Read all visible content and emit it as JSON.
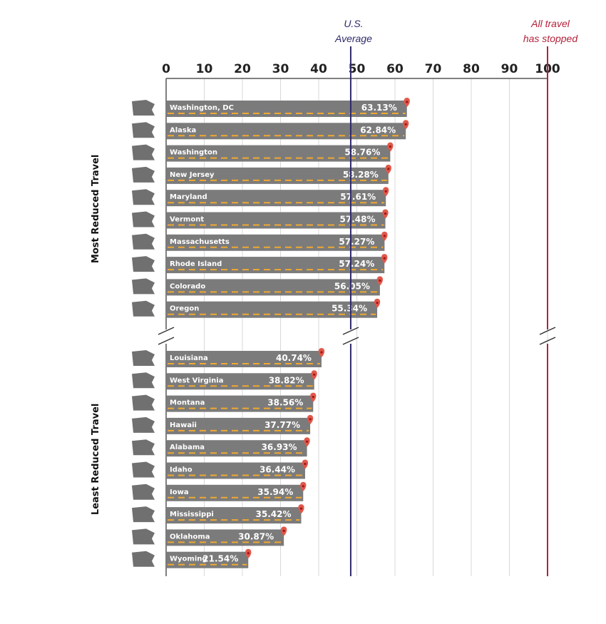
{
  "chart_data": {
    "type": "bar",
    "orientation": "horizontal",
    "xlim": [
      0,
      100
    ],
    "x_ticks": [
      "0",
      "10",
      "20",
      "30",
      "40",
      "50",
      "60",
      "70",
      "80",
      "90",
      "100"
    ],
    "grid": true,
    "reference_lines": [
      {
        "label_line1": "U.S.",
        "label_line2": "Average",
        "value": 48.4,
        "color": "#2e2a6b"
      },
      {
        "label_line1": "All travel",
        "label_line2": "has stopped",
        "value": 100,
        "color": "#b3213a"
      }
    ],
    "groups": [
      {
        "name": "Most Reduced Travel",
        "categories": [
          "Washington, DC",
          "Alaska",
          "Washington",
          "New Jersey",
          "Maryland",
          "Vermont",
          "Massachusetts",
          "Rhode Island",
          "Colorado",
          "Oregon"
        ],
        "values": [
          63.13,
          62.84,
          58.76,
          58.28,
          57.61,
          57.48,
          57.27,
          57.24,
          56.05,
          55.34
        ],
        "value_labels": [
          "63.13%",
          "62.84%",
          "58.76%",
          "58.28%",
          "57.61%",
          "57.48%",
          "57.27%",
          "57.24%",
          "56.05%",
          "55.34%"
        ]
      },
      {
        "name": "Least Reduced Travel",
        "categories": [
          "Louisiana",
          "West Virginia",
          "Montana",
          "Hawaii",
          "Alabama",
          "Idaho",
          "Iowa",
          "Mississippi",
          "Oklahoma",
          "Wyoming"
        ],
        "values": [
          40.74,
          38.82,
          38.56,
          37.77,
          36.93,
          36.44,
          35.94,
          35.42,
          30.87,
          21.54
        ],
        "value_labels": [
          "40.74%",
          "38.82%",
          "38.56%",
          "37.77%",
          "36.93%",
          "36.44%",
          "35.94%",
          "35.42%",
          "30.87%",
          "21.54%"
        ]
      }
    ],
    "colors": {
      "bar": "#7b7b7b",
      "dash": "#f0a830",
      "pin": "#e0584a",
      "state": "#707070",
      "grid": "#d8d8d8"
    }
  }
}
